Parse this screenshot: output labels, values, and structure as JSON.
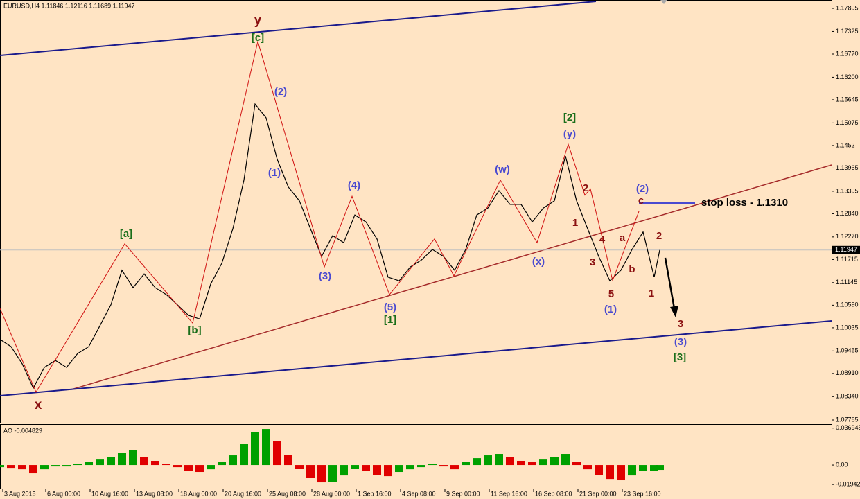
{
  "chart_data": [
    {
      "type": "line",
      "title": "EURUSD,H4  1.11846 1.12116 1.11689 1.11947",
      "xlim": [
        0,
        300
      ],
      "ylim": [
        1.07697,
        1.181
      ],
      "yticks": [
        1.17895,
        1.17325,
        {
          "value": 1.1677,
          "label": "1.16770"
        },
        {
          "value": 1.162,
          "label": "1.16200"
        },
        1.15645,
        1.15075,
        1.1452,
        1.13965,
        1.13395,
        {
          "value": 1.1284,
          "label": "1.12840"
        },
        {
          "value": 1.1227,
          "label": "1.12270"
        },
        1.11715,
        1.11145,
        {
          "value": 1.1059,
          "label": "1.10590"
        },
        1.10035,
        1.09465,
        {
          "value": 1.0891,
          "label": "1.08910"
        },
        {
          "value": 1.0834,
          "label": "1.08340"
        },
        1.07765
      ],
      "series": [
        {
          "color": "#000000",
          "x": [
            0,
            4,
            8,
            12,
            16,
            20,
            24,
            28,
            32,
            36,
            40,
            44,
            48,
            52,
            56,
            60,
            64,
            68,
            72,
            76,
            80,
            84,
            88,
            92,
            96,
            100,
            104,
            108,
            112,
            116,
            120,
            124,
            128,
            132,
            136,
            140,
            144,
            148,
            152,
            156,
            160,
            164,
            168,
            172,
            176,
            180,
            184,
            188,
            192,
            196,
            200,
            204,
            208,
            212,
            216,
            220,
            224,
            228,
            232,
            236,
            238
          ],
          "values": [
            1.0975,
            1.0957,
            1.0915,
            1.0855,
            1.0906,
            1.0923,
            1.0906,
            1.094,
            1.0957,
            1.1008,
            1.106,
            1.1145,
            1.1102,
            1.1136,
            1.1102,
            1.1085,
            1.106,
            1.1034,
            1.1025,
            1.1111,
            1.1162,
            1.1247,
            1.1367,
            1.1554,
            1.152,
            1.1418,
            1.135,
            1.1316,
            1.1247,
            1.1179,
            1.123,
            1.1213,
            1.1281,
            1.1264,
            1.1222,
            1.1128,
            1.1119,
            1.1153,
            1.117,
            1.1196,
            1.1179,
            1.1145,
            1.1196,
            1.1281,
            1.1298,
            1.1341,
            1.1307,
            1.1307,
            1.1264,
            1.1298,
            1.1316,
            1.1426,
            1.1316,
            1.1247,
            1.1179,
            1.1119,
            1.1145,
            1.1196,
            1.1239,
            1.1128,
            1.11947
          ]
        },
        {
          "color": "#d01010",
          "x": [
            0,
            13,
            45,
            69.5,
            93,
            117,
            127,
            140.5,
            156.75,
            163.75,
            180.5,
            193.75,
            205,
            211,
            213,
            221,
            230.5
          ],
          "values": [
            1.1051,
            1.0845,
            1.121,
            1.1015,
            1.1708,
            1.1153,
            1.1327,
            1.1085,
            1.1222,
            1.1131,
            1.1367,
            1.1213,
            1.1455,
            1.133,
            1.1345,
            1.112,
            1.129
          ]
        }
      ],
      "last_price": {
        "value": 1.11947,
        "label": "1.11947"
      },
      "stop_loss": {
        "value": 1.131,
        "label": "stop loss - 1.1310"
      },
      "annotations": [
        {
          "text": "x",
          "color": "#8b1010"
        },
        {
          "text": "y",
          "color": "#8b1010"
        },
        {
          "text": "[c]",
          "color": "#1a6e1a"
        },
        {
          "text": "[a]",
          "color": "#1a6e1a"
        },
        {
          "text": "[b]",
          "color": "#1a6e1a"
        },
        {
          "text": "(2)",
          "color": "#4a4ad0"
        },
        {
          "text": "(1)",
          "color": "#4a4ad0"
        },
        {
          "text": "(3)",
          "color": "#4a4ad0"
        },
        {
          "text": "(4)",
          "color": "#4a4ad0"
        },
        {
          "text": "(5)",
          "color": "#4a4ad0"
        },
        {
          "text": "[1]",
          "color": "#1a6e1a"
        },
        {
          "text": "(w)",
          "color": "#4a4ad0"
        },
        {
          "text": "(x)",
          "color": "#4a4ad0"
        },
        {
          "text": "(y)",
          "color": "#4a4ad0"
        },
        {
          "text": "[2]",
          "color": "#1a6e1a"
        },
        {
          "text": "2",
          "color": "#8b1010"
        },
        {
          "text": "1",
          "color": "#8b1010"
        },
        {
          "text": "3",
          "color": "#8b1010"
        },
        {
          "text": "4",
          "color": "#8b1010"
        },
        {
          "text": "5",
          "color": "#8b1010"
        },
        {
          "text": "(1)",
          "color": "#4a4ad0"
        },
        {
          "text": "a",
          "color": "#8b1010"
        },
        {
          "text": "b",
          "color": "#8b1010"
        },
        {
          "text": "c",
          "color": "#8b1010"
        },
        {
          "text": "(2)",
          "color": "#4a4ad0"
        },
        {
          "text": "2",
          "color": "#8b1010"
        },
        {
          "text": "1",
          "color": "#8b1010"
        },
        {
          "text": "3",
          "color": "#8b1010"
        },
        {
          "text": "(3)",
          "color": "#4a4ad0"
        },
        {
          "text": "[3]",
          "color": "#1a6e1a"
        }
      ]
    },
    {
      "type": "bar",
      "title": "AO -0.004829",
      "xlim": [
        0,
        300
      ],
      "ylim": [
        -0.0235,
        0.0395
      ],
      "yticks": [
        0.036945,
        {
          "value": 0,
          "label": "0.00"
        },
        -0.019425
      ],
      "xticks": [
        {
          "value": 1,
          "label": "3 Aug 2015"
        },
        {
          "value": 16.5,
          "label": "6 Aug 00:00"
        },
        {
          "value": 32.5,
          "label": "10 Aug 16:00"
        },
        {
          "value": 48.5,
          "label": "13 Aug 08:00"
        },
        {
          "value": 64.5,
          "label": "18 Aug 00:00"
        },
        {
          "value": 80.5,
          "label": "20 Aug 16:00"
        },
        {
          "value": 96.5,
          "label": "25 Aug 08:00"
        },
        {
          "value": 112.5,
          "label": "28 Aug 00:00"
        },
        {
          "value": 128.5,
          "label": "1 Sep 16:00"
        },
        {
          "value": 144.5,
          "label": "4 Sep 08:00"
        },
        {
          "value": 160.5,
          "label": "9 Sep 00:00"
        },
        {
          "value": 176.5,
          "label": "11 Sep 16:00"
        },
        {
          "value": 192.5,
          "label": "16 Sep 08:00"
        },
        {
          "value": 208.5,
          "label": "21 Sep 00:00"
        },
        {
          "value": 224.5,
          "label": "23 Sep 16:00"
        }
      ],
      "up_color": "#00a000",
      "down_color": "#e00000",
      "x": [
        0,
        4,
        8,
        12,
        16,
        20,
        24,
        28,
        32,
        36,
        40,
        44,
        48,
        52,
        56,
        60,
        64,
        68,
        72,
        76,
        80,
        84,
        88,
        92,
        96,
        100,
        104,
        108,
        112,
        116,
        120,
        124,
        128,
        132,
        136,
        140,
        144,
        148,
        152,
        156,
        160,
        164,
        168,
        172,
        176,
        180,
        184,
        188,
        192,
        196,
        200,
        204,
        208,
        212,
        216,
        220,
        224,
        228,
        232,
        236,
        238
      ],
      "values": [
        -0.0021,
        -0.0028,
        -0.0042,
        -0.0083,
        -0.0042,
        -0.0014,
        -0.0014,
        0.0014,
        0.0035,
        0.0055,
        0.0083,
        0.0125,
        0.0152,
        0.0083,
        0.0042,
        0.0014,
        -0.0021,
        -0.0055,
        -0.0069,
        -0.0042,
        0.0028,
        0.0097,
        0.0208,
        0.0332,
        0.036,
        0.0242,
        0.0104,
        -0.0035,
        -0.0125,
        -0.0173,
        -0.0166,
        -0.0104,
        -0.0035,
        -0.0055,
        -0.0097,
        -0.0111,
        -0.0069,
        -0.0042,
        -0.0021,
        0.0014,
        -0.0014,
        -0.0042,
        0.0028,
        0.0069,
        0.0097,
        0.0111,
        0.0083,
        0.0042,
        0.0028,
        0.0055,
        0.0083,
        0.0111,
        0.0028,
        -0.0042,
        -0.0097,
        -0.0139,
        -0.0152,
        -0.0104,
        -0.0055,
        -0.0055,
        -0.004829
      ]
    }
  ]
}
